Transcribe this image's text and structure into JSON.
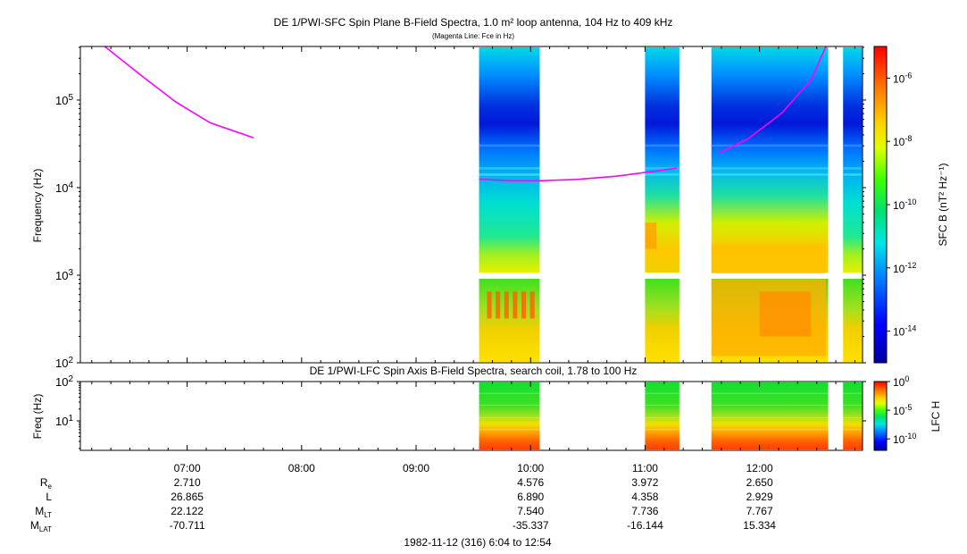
{
  "chart_data": [
    {
      "type": "heatmap",
      "title": "DE 1/PWI-SFC  Spin Plane B-Field Spectra, 1.0 m² loop antenna, 104 Hz to 409 kHz",
      "subtitle": "(Magenta Line: Fce in Hz)",
      "ylabel": "Frequency (Hz)",
      "yscale": "log",
      "ylim": [
        100,
        409000
      ],
      "yticks": [
        {
          "v": 100,
          "b": "10",
          "e": "2"
        },
        {
          "v": 1000,
          "b": "10",
          "e": "3"
        },
        {
          "v": 10000,
          "b": "10",
          "e": "4"
        },
        {
          "v": 100000,
          "b": "10",
          "e": "5"
        }
      ],
      "xlim_hours": [
        6.067,
        12.9
      ],
      "data_intervals_hours": [
        [
          9.55,
          10.08
        ],
        [
          11.0,
          11.3
        ],
        [
          11.58,
          12.6
        ],
        [
          12.73,
          12.9
        ]
      ],
      "colorbar": {
        "label": "SFC B (nT² Hz⁻¹)",
        "scale": "log",
        "range": [
          1e-15,
          1e-05
        ],
        "ticks": [
          {
            "v": -6,
            "b": "10",
            "e": "-6"
          },
          {
            "v": -8,
            "b": "10",
            "e": "-8"
          },
          {
            "v": -10,
            "b": "10",
            "e": "-10"
          },
          {
            "v": -12,
            "b": "10",
            "e": "-12"
          },
          {
            "v": -14,
            "b": "10",
            "e": "-14"
          }
        ]
      },
      "fce_line": {
        "name": "Fce in Hz",
        "color": "#ff00ff",
        "segments": [
          [
            [
              6.28,
              409000
            ],
            [
              6.6,
              190000
            ],
            [
              6.9,
              95000
            ],
            [
              7.2,
              55000
            ],
            [
              7.58,
              37000
            ]
          ],
          [
            [
              9.55,
              12500
            ],
            [
              9.8,
              12000
            ],
            [
              10.1,
              12000
            ],
            [
              10.4,
              12400
            ],
            [
              10.75,
              13500
            ],
            [
              11.1,
              15500
            ],
            [
              11.28,
              16700
            ]
          ],
          [
            [
              11.65,
              25000
            ],
            [
              11.9,
              36000
            ],
            [
              12.2,
              72000
            ],
            [
              12.45,
              170000
            ],
            [
              12.58,
              409000
            ]
          ]
        ]
      }
    },
    {
      "type": "heatmap",
      "title": "DE 1/PWI-LFC  Spin Axis B-Field Spectra, search coil, 1.78 to 100 Hz",
      "ylabel": "Freq (Hz)",
      "yscale": "log",
      "ylim": [
        1.78,
        100
      ],
      "yticks": [
        {
          "v": 10,
          "b": "10",
          "e": "1"
        },
        {
          "v": 100,
          "b": "10",
          "e": "2"
        }
      ],
      "xlim_hours": [
        6.067,
        12.9
      ],
      "data_intervals_hours": [
        [
          9.55,
          10.08
        ],
        [
          11.0,
          11.3
        ],
        [
          11.58,
          12.6
        ],
        [
          12.73,
          12.9
        ]
      ],
      "colorbar": {
        "label": "LFC H",
        "scale": "log",
        "range": [
          1e-12,
          1
        ],
        "ticks": [
          {
            "v": 0,
            "b": "10",
            "e": "0"
          },
          {
            "v": -5,
            "b": "10",
            "e": "-5"
          },
          {
            "v": -10,
            "b": "10",
            "e": "-10"
          }
        ]
      }
    }
  ],
  "axis": {
    "time_ticks": [
      {
        "label": "07:00",
        "h": 7
      },
      {
        "label": "08:00",
        "h": 8
      },
      {
        "label": "09:00",
        "h": 9
      },
      {
        "label": "10:00",
        "h": 10
      },
      {
        "label": "11:00",
        "h": 11
      },
      {
        "label": "12:00",
        "h": 12
      }
    ],
    "ephemeris": [
      {
        "label": "R",
        "sub": "e",
        "values": [
          "2.710",
          "",
          "",
          "4.576",
          "3.972",
          "2.650"
        ]
      },
      {
        "label": "L",
        "sub": "",
        "values": [
          "26.865",
          "",
          "",
          "6.890",
          "4.358",
          "2.929"
        ]
      },
      {
        "label": "M",
        "sub": "LT",
        "values": [
          "22.122",
          "",
          "",
          "7.540",
          "7.736",
          "7.767"
        ]
      },
      {
        "label": "M",
        "sub": "LAT",
        "values": [
          "-70.711",
          "",
          "",
          "-35.337",
          "-16.144",
          "15.334"
        ]
      }
    ],
    "date_caption": "1982-11-12 (316) 6:04 to 12:54"
  }
}
